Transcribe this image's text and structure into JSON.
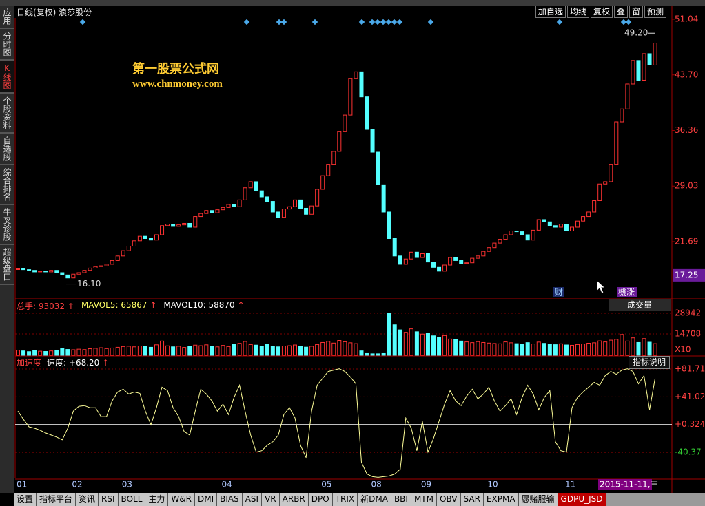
{
  "header": {
    "title": "日线(复权) 浪莎股份",
    "buttons": [
      "加自选",
      "均线",
      "复权",
      "叠",
      "窗",
      "预测"
    ]
  },
  "sidebar": [
    "应用",
    "分时图",
    "K线图",
    "个股资料",
    "自选股",
    "综合排名",
    "牛叉诊股",
    "超级盘口"
  ],
  "watermark": {
    "name": "第一股票公式网",
    "url": "www.chnmoney.com"
  },
  "chart_data": [
    {
      "type": "candlestick",
      "ylim": [
        14.24,
        51.22
      ],
      "yticks": [
        51.04,
        {
          "value": 43.7,
          "label": "43.70"
        },
        36.36,
        29.03,
        21.69
      ],
      "cursor": 17.25,
      "high_label": {
        "value": 49.2,
        "label": "49.20"
      },
      "low_label": {
        "value": 16.1,
        "label": "16.10"
      },
      "signals": [
        "财",
        "機涨"
      ],
      "xticks": [
        {
          "value": 0,
          "label": "01"
        },
        {
          "value": 10,
          "label": "02"
        },
        {
          "value": 19,
          "label": "03"
        },
        {
          "value": 37,
          "label": "04"
        },
        {
          "value": 55,
          "label": "05"
        },
        {
          "value": 64,
          "label": "08"
        },
        {
          "value": 73,
          "label": "09"
        },
        {
          "value": 85,
          "label": "10"
        },
        {
          "value": 99,
          "label": "11"
        }
      ],
      "grid": false,
      "up_color": "#ff3232",
      "down_color": "#54ffff",
      "values": [
        18.1,
        18.0,
        17.9,
        17.7,
        17.8,
        17.7,
        17.9,
        17.6,
        17.3,
        16.9,
        17.4,
        17.6,
        17.9,
        18.2,
        18.4,
        18.5,
        18.7,
        19.2,
        19.8,
        20.5,
        21.1,
        21.8,
        22.4,
        22.1,
        21.9,
        22.6,
        23.8,
        24.0,
        23.7,
        23.9,
        24.1,
        23.6,
        25.0,
        25.4,
        25.8,
        25.5,
        25.9,
        26.2,
        26.6,
        26.3,
        27.2,
        28.8,
        29.6,
        28.4,
        27.6,
        27.0,
        25.6,
        24.9,
        26.0,
        26.3,
        27.2,
        26.1,
        25.3,
        26.4,
        28.6,
        30.4,
        31.9,
        33.6,
        36.2,
        38.4,
        43.2,
        44.1,
        40.8,
        36.5,
        33.5,
        29.2,
        25.6,
        22.1,
        19.8,
        18.7,
        19.4,
        20.3,
        19.6,
        20.1,
        19.0,
        18.3,
        17.8,
        18.6,
        19.6,
        19.2,
        18.8,
        18.9,
        19.5,
        19.8,
        20.4,
        20.9,
        21.5,
        22.0,
        22.6,
        23.1,
        23.0,
        22.6,
        21.9,
        23.2,
        24.6,
        24.3,
        23.8,
        23.6,
        24.0,
        23.1,
        23.6,
        24.4,
        25.0,
        25.6,
        27.1,
        29.3,
        29.6,
        31.9,
        37.5,
        39.2,
        42.5,
        45.6,
        43.0,
        46.5,
        45.0,
        47.9
      ]
    },
    {
      "type": "bar",
      "ylim": [
        0,
        37485
      ],
      "yticks": [
        14708,
        28942
      ],
      "unit_label": "X10",
      "dropdown": "成交量",
      "grid": true,
      "legend": [
        {
          "name": "总手",
          "value": 93032,
          "color": "#ff4040"
        },
        {
          "name": "MAVOL5",
          "value": 65867,
          "color": "#ffff66"
        },
        {
          "name": "MAVOL10",
          "value": 58870,
          "color": "#ffffff"
        }
      ],
      "values": [
        3500,
        3000,
        2500,
        3200,
        2800,
        2600,
        3000,
        3500,
        4500,
        4000,
        3800,
        4200,
        3900,
        4500,
        4800,
        5200,
        4600,
        5000,
        5500,
        6000,
        6200,
        5800,
        6400,
        6000,
        5500,
        7200,
        9800,
        6500,
        5800,
        6200,
        5400,
        6000,
        7000,
        6600,
        7200,
        6300,
        5800,
        6800,
        6000,
        7600,
        8200,
        9500,
        7400,
        7000,
        6400,
        7800,
        6200,
        5800,
        6400,
        6600,
        7100,
        6000,
        5600,
        6200,
        7400,
        8800,
        9600,
        8400,
        10200,
        9300,
        8600,
        8000,
        3000,
        1200,
        1000,
        1000,
        1200,
        29000,
        21000,
        17500,
        15800,
        18200,
        16200,
        14600,
        15200,
        13400,
        12100,
        13600,
        11200,
        10800,
        9800,
        9200,
        8700,
        9400,
        8800,
        8400,
        8100,
        7900,
        9200,
        8600,
        8000,
        7400,
        8700,
        7800,
        9100,
        8200,
        7600,
        7300,
        7900,
        7100,
        6900,
        7400,
        7800,
        8300,
        8600,
        9900,
        9200,
        10400,
        11000,
        14300,
        9800,
        12000,
        8800,
        11500,
        9000,
        8000
      ]
    },
    {
      "type": "line",
      "name": "加速度",
      "button": "指标说明",
      "ylim": [
        -78.6,
        100.8
      ],
      "grid": true,
      "yticks": [
        {
          "value": 81.71,
          "label": "+81.71"
        },
        {
          "value": 41.02,
          "label": "+41.02"
        },
        {
          "value": 0.324,
          "label": "+0.324"
        },
        -40.37
      ],
      "readout": {
        "value": 68.2,
        "label": "+68.20"
      },
      "series": [
        {
          "name": "速度",
          "color": "#ffff99",
          "values": [
            20,
            8,
            -3,
            -5,
            -8,
            -12,
            -15,
            -18,
            -22,
            -5,
            20,
            27,
            28,
            25,
            25,
            12,
            12,
            35,
            48,
            52,
            45,
            48,
            46,
            20,
            0,
            25,
            55,
            50,
            25,
            12,
            -10,
            -15,
            20,
            52,
            45,
            35,
            20,
            30,
            15,
            40,
            58,
            20,
            -15,
            -40,
            -38,
            -30,
            -25,
            -15,
            15,
            25,
            10,
            -30,
            -48,
            20,
            58,
            68,
            78,
            80,
            82,
            78,
            70,
            60,
            -55,
            -72,
            -76,
            -77,
            -76,
            -75,
            -72,
            -65,
            10,
            -5,
            -38,
            5,
            -40,
            -20,
            5,
            30,
            50,
            35,
            28,
            42,
            52,
            38,
            45,
            55,
            35,
            20,
            28,
            38,
            15,
            40,
            58,
            45,
            22,
            40,
            50,
            -25,
            -38,
            -40,
            25,
            40,
            48,
            55,
            62,
            58,
            72,
            78,
            74,
            80,
            82,
            78,
            60,
            72,
            22,
            68.2
          ]
        }
      ]
    }
  ],
  "footer": {
    "date_label": "2015-11-11,三",
    "active_tab": "GDPU_JSD",
    "tabs": [
      "设置",
      "指标平台",
      "资讯",
      "RSI",
      "BOLL",
      "主力",
      "W&R",
      "DMI",
      "BIAS",
      "ASI",
      "VR",
      "ARBR",
      "DPO",
      "TRIX",
      "新DMA",
      "BBI",
      "MTM",
      "OBV",
      "SAR",
      "EXPMA",
      "愿赌服输",
      "GDPU_JSD"
    ]
  }
}
